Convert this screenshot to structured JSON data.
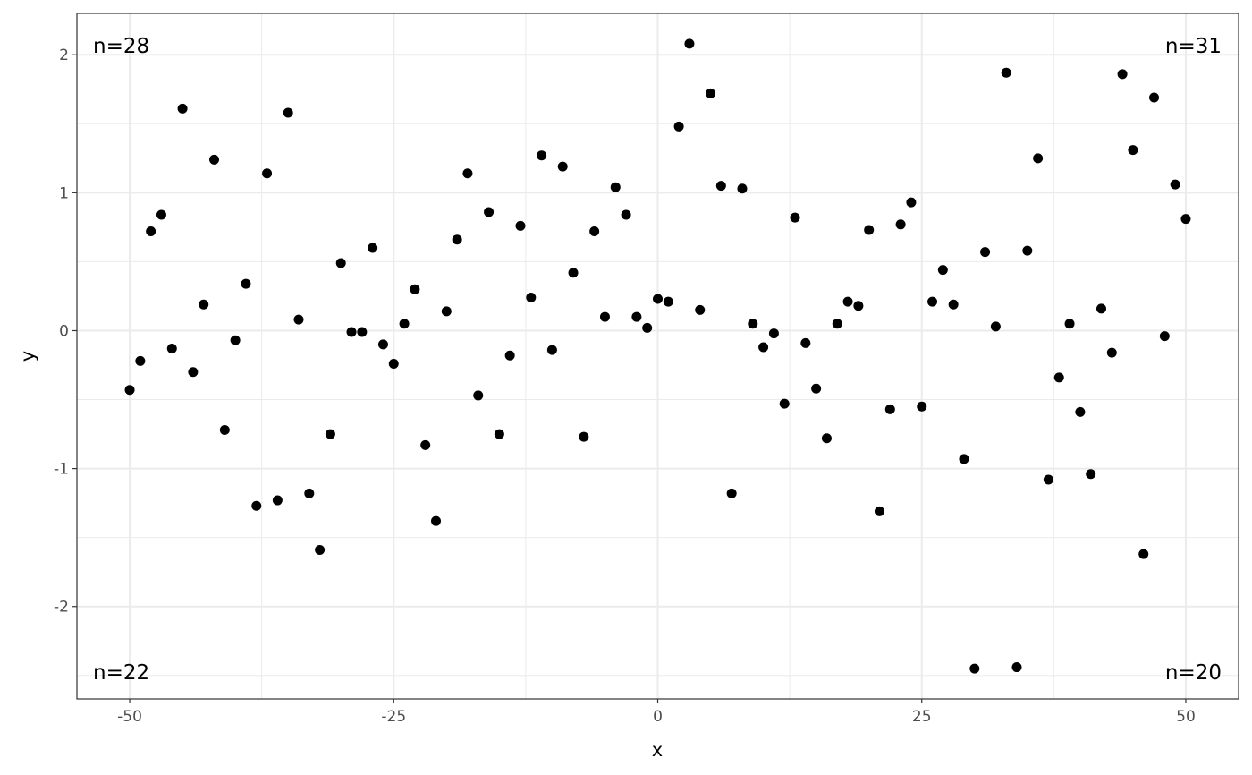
{
  "chart_data": {
    "type": "scatter",
    "title": "",
    "xlabel": "x",
    "ylabel": "y",
    "xlim": [
      -55,
      55
    ],
    "ylim": [
      -2.67,
      2.3
    ],
    "x_ticks": [
      -50,
      -25,
      0,
      25,
      50
    ],
    "x_tick_labels": [
      "-50",
      "-25",
      "0",
      "25",
      "50"
    ],
    "y_ticks": [
      -2,
      -1,
      0,
      1,
      2
    ],
    "y_tick_labels": [
      "-2",
      "-1",
      "0",
      "1",
      "2"
    ],
    "grid": true,
    "point_color": "#000000",
    "annotations": {
      "top_left": "n=28",
      "top_right": "n=31",
      "bottom_left": "n=22",
      "bottom_right": "n=20"
    },
    "x": [
      -50,
      -49,
      -48,
      -47,
      -46,
      -45,
      -44,
      -43,
      -42,
      -41,
      -40,
      -39,
      -38,
      -37,
      -36,
      -35,
      -34,
      -33,
      -32,
      -31,
      -30,
      -29,
      -28,
      -27,
      -26,
      -25,
      -24,
      -23,
      -22,
      -21,
      -20,
      -19,
      -18,
      -17,
      -16,
      -15,
      -14,
      -13,
      -12,
      -11,
      -10,
      -9,
      -8,
      -7,
      -6,
      -5,
      -4,
      -3,
      -2,
      -1,
      0,
      1,
      2,
      3,
      4,
      5,
      6,
      7,
      8,
      9,
      10,
      11,
      12,
      13,
      14,
      15,
      16,
      17,
      18,
      19,
      20,
      21,
      22,
      23,
      24,
      25,
      26,
      27,
      28,
      29,
      30,
      31,
      32,
      33,
      34,
      35,
      36,
      37,
      38,
      39,
      40,
      41,
      42,
      43,
      44,
      45,
      46,
      47,
      48,
      49,
      50
    ],
    "y": [
      -0.43,
      -0.22,
      0.72,
      0.84,
      -0.13,
      1.61,
      -0.3,
      0.19,
      1.24,
      -0.72,
      -0.07,
      0.34,
      -1.27,
      1.14,
      -1.23,
      1.58,
      0.08,
      -1.18,
      -1.59,
      -0.75,
      0.49,
      -0.01,
      -0.01,
      0.6,
      -0.1,
      -0.24,
      0.05,
      0.3,
      -0.83,
      -1.38,
      0.14,
      0.66,
      1.14,
      -0.47,
      0.86,
      -0.75,
      -0.18,
      0.76,
      0.24,
      1.27,
      -0.14,
      1.19,
      0.42,
      -0.77,
      0.72,
      0.1,
      1.04,
      0.84,
      0.1,
      0.02,
      0.23,
      0.21,
      1.48,
      2.08,
      0.15,
      1.72,
      1.05,
      -1.18,
      1.03,
      0.05,
      -0.12,
      -0.02,
      -0.53,
      0.82,
      -0.09,
      -0.42,
      -0.78,
      0.05,
      0.21,
      0.18,
      0.73,
      -1.31,
      -0.57,
      0.77,
      0.93,
      -0.55,
      0.21,
      0.44,
      0.19,
      -0.93,
      -2.45,
      0.57,
      0.03,
      1.87,
      -2.44,
      0.58,
      1.25,
      -1.08,
      -0.34,
      0.05,
      -0.59,
      -1.04,
      0.16,
      -0.16,
      1.86,
      1.31,
      -1.62,
      1.69,
      -0.04,
      1.06,
      0.81
    ]
  }
}
